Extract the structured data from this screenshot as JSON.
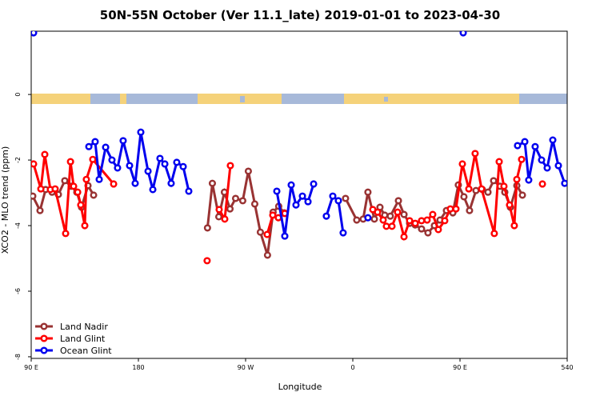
{
  "chart_data": {
    "type": "line",
    "title": "50N-55N October (Ver 11.1_late)   2019-01-01 to 2023-04-30",
    "x_label": "Longitude",
    "y_label": "XCO2 - MLO trend (ppm)",
    "xlim": [
      90,
      540
    ],
    "xticks": [
      {
        "value": 90,
        "label": "90 E"
      },
      180,
      {
        "value": 270,
        "label": "90 W"
      },
      {
        "value": 360,
        "label": "0"
      },
      {
        "value": 450,
        "label": "90 E"
      },
      540
    ],
    "ylim": [
      -8.05,
      1.93
    ],
    "yticks": [
      0,
      -2,
      -4,
      -6,
      -8
    ],
    "legend": "bottom-left",
    "series": [
      {
        "name": "Land Nadir",
        "color": "#993333",
        "x": [
          91.3,
          97.4,
          102.1,
          107.5,
          112.8,
          118.2,
          123.6,
          128.3,
          132.3,
          137.7,
          142.4,
          null,
          238.0,
          242.1,
          247.5,
          252.2,
          256.9,
          261.6,
          267.6,
          272.3,
          277.7,
          282.4,
          288.4,
          293.1,
          297.8,
          302.5,
          null,
          353.9,
          363.3,
          368.7,
          372.7,
          378.1,
          382.8,
          386.8,
          391.5,
          398.3,
          403.0,
          407.7,
          412.4,
          417.7,
          423.1,
          428.5,
          433.2,
          438.6,
          444.0,
          448.6,
          453.3,
          458.0,
          463.4,
          468.8,
          473.5,
          478.2,
          483.6,
          487.6,
          492.3,
          497.7,
          502.4
        ],
        "values": [
          -3.1,
          -3.54,
          -2.9,
          -2.98,
          -3.05,
          -2.63,
          -2.8,
          -2.98,
          -3.44,
          -2.78,
          -3.07,
          null,
          -4.07,
          -2.71,
          -3.73,
          -2.98,
          -3.49,
          -3.17,
          -3.24,
          -2.34,
          -3.34,
          -4.2,
          -4.9,
          -3.59,
          -3.41,
          -3.61,
          null,
          -3.17,
          -3.83,
          -3.8,
          -2.98,
          -3.8,
          -3.44,
          -3.68,
          -3.71,
          -3.24,
          -3.66,
          -3.93,
          -3.98,
          -4.1,
          -4.22,
          -4.0,
          -3.83,
          -3.54,
          -3.61,
          -2.76,
          -3.12,
          -3.54,
          -2.93,
          -2.9,
          -2.98,
          -2.63,
          -2.8,
          -2.98,
          -3.44,
          -2.78,
          -3.07
        ]
      },
      {
        "name": "Land Glint",
        "color": "#ff0000",
        "x": [
          92.0,
          98.1,
          101.4,
          106.1,
          110.1,
          118.9,
          123.0,
          125.6,
          129.0,
          131.6,
          135.0,
          136.3,
          141.7,
          159.2,
          null,
          237.7,
          null,
          247.8,
          252.5,
          257.2,
          null,
          288.1,
          292.8,
          297.5,
          302.9,
          null,
          376.8,
          380.8,
          385.5,
          388.2,
          392.9,
          397.6,
          403.0,
          407.7,
          412.4,
          417.7,
          422.4,
          427.1,
          431.8,
          437.2,
          441.9,
          446.6,
          452.0,
          457.4,
          462.7,
          468.1,
          478.8,
          482.9,
          486.9,
          491.6,
          495.6,
          497.7,
          501.7,
          null,
          519.2
        ],
        "values": [
          -2.12,
          -2.88,
          -1.83,
          -2.9,
          -2.88,
          -4.24,
          -2.05,
          -2.8,
          -2.98,
          -3.37,
          -4.0,
          -2.59,
          -1.98,
          -2.73,
          null,
          -5.07,
          null,
          -3.51,
          -3.8,
          -2.17,
          null,
          -4.27,
          -3.68,
          -3.76,
          -3.63,
          null,
          -3.51,
          -3.59,
          -3.83,
          -4.02,
          -4.02,
          -3.59,
          -4.34,
          -3.85,
          -3.93,
          -3.85,
          -3.83,
          -3.66,
          -4.12,
          -3.85,
          -3.49,
          -3.49,
          -2.12,
          -2.88,
          -1.8,
          -2.88,
          -4.24,
          -2.05,
          -2.8,
          -3.37,
          -4.0,
          -2.59,
          -1.98,
          null,
          -2.73
        ]
      },
      {
        "name": "Ocean Glint",
        "color": "#0000ee",
        "x": [
          92.0,
          null,
          138.4,
          143.7,
          147.1,
          152.5,
          157.8,
          162.5,
          167.2,
          172.6,
          177.3,
          182.0,
          188.1,
          192.1,
          198.1,
          202.2,
          207.5,
          212.2,
          217.6,
          222.3,
          null,
          296.2,
          302.9,
          308.3,
          312.3,
          317.7,
          322.4,
          327.1,
          null,
          337.8,
          343.2,
          347.9,
          351.9,
          null,
          372.7,
          null,
          452.7,
          null,
          498.3,
          504.4,
          507.7,
          513.1,
          518.5,
          523.2,
          527.9,
          532.6,
          537.9
        ],
        "values": [
          1.88,
          null,
          -1.59,
          -1.44,
          -2.59,
          -1.61,
          -2.0,
          -2.24,
          -1.41,
          -2.17,
          -2.71,
          -1.15,
          -2.34,
          -2.9,
          -1.95,
          -2.12,
          -2.71,
          -2.07,
          -2.2,
          -2.95,
          null,
          -2.95,
          -4.32,
          -2.76,
          -3.37,
          -3.1,
          -3.27,
          -2.73,
          null,
          -3.71,
          -3.1,
          -3.24,
          -4.22,
          null,
          -3.76,
          null,
          1.88,
          null,
          -1.56,
          -1.44,
          -2.61,
          -1.59,
          -2.0,
          -2.24,
          -1.39,
          -2.17,
          -2.71
        ]
      }
    ]
  }
}
